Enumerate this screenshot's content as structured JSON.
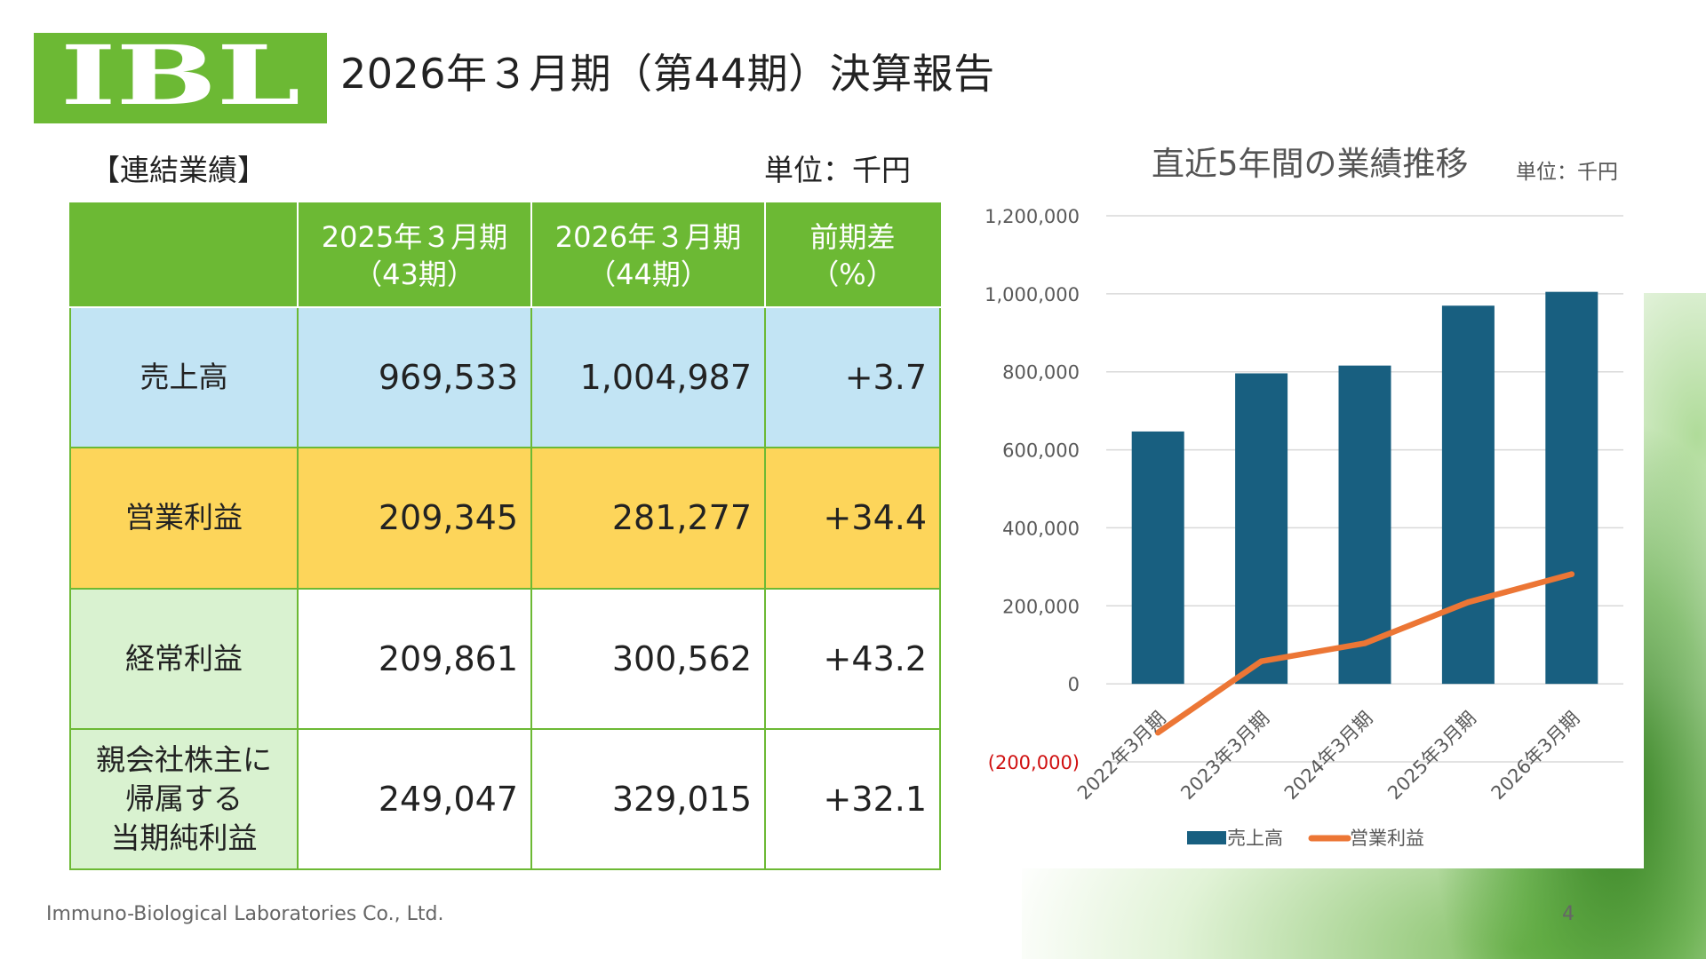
{
  "logo": {
    "text": "IBL"
  },
  "header": {
    "title": "2026年３月期（第44期）決算報告"
  },
  "table_section": {
    "label": "【連結業績】",
    "unit": "単位：千円",
    "headers": [
      "",
      "2025年３月期\n（43期）",
      "2026年３月期\n（44期）",
      "前期差\n（%）"
    ],
    "rows": [
      {
        "label": "売上高",
        "prev": "969,533",
        "curr": "1,004,987",
        "diff": "+3.7"
      },
      {
        "label": "営業利益",
        "prev": "209,345",
        "curr": "281,277",
        "diff": "+34.4"
      },
      {
        "label": "経常利益",
        "prev": "209,861",
        "curr": "300,562",
        "diff": "+43.2"
      },
      {
        "label": "親会社株主に\n帰属する\n当期純利益",
        "prev": "249,047",
        "curr": "329,015",
        "diff": "+32.1"
      }
    ]
  },
  "chart_section": {
    "title": "直近5年間の業績推移",
    "unit": "単位：千円"
  },
  "chart_data": {
    "type": "bar",
    "title": "直近5年間の業績推移",
    "categories": [
      "2022年3月期",
      "2023年3月期",
      "2024年3月期",
      "2025年3月期",
      "2026年3月期"
    ],
    "series": [
      {
        "name": "売上高",
        "type": "bar",
        "color": "#185f80",
        "values": [
          647000,
          796000,
          816000,
          969533,
          1004987
        ]
      },
      {
        "name": "営業利益",
        "type": "line",
        "color": "#ec7635",
        "values": [
          -125000,
          58000,
          104000,
          209345,
          281277
        ]
      }
    ],
    "ylim": [
      -200000,
      1200000
    ],
    "yticks": [
      1200000,
      1000000,
      800000,
      600000,
      400000,
      200000,
      0,
      -200000
    ],
    "ytick_labels": [
      "1,200,000",
      "1,000,000",
      "800,000",
      "600,000",
      "400,000",
      "200,000",
      "0",
      "(200,000)"
    ],
    "negative_label_color": "#d01010",
    "grid": true,
    "legend": "bottom"
  },
  "footer": {
    "company": "Immuno-Biological Laboratories Co., Ltd.",
    "page": "4"
  },
  "colors": {
    "brand_green": "#6cb934",
    "sales_row": "#c2e4f4",
    "op_row": "#fdd55a",
    "label_green": "#d9f2d0"
  }
}
